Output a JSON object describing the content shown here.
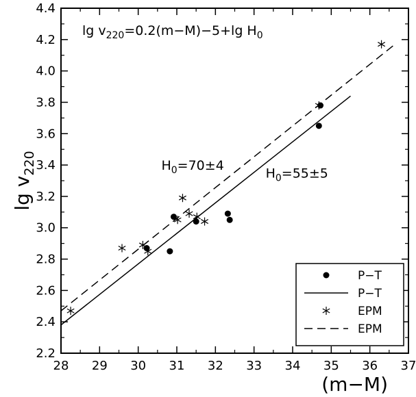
{
  "chart_data": {
    "type": "scatter",
    "title": "",
    "xlabel": "(m−M)",
    "ylabel": {
      "main": "lg v",
      "sub": "220"
    },
    "xlim": [
      28,
      37
    ],
    "ylim": [
      2.2,
      4.4
    ],
    "x_ticks": [
      28,
      29,
      30,
      31,
      32,
      33,
      34,
      35,
      36,
      37
    ],
    "y_ticks": [
      2.2,
      2.4,
      2.6,
      2.8,
      3.0,
      3.2,
      3.4,
      3.6,
      3.8,
      4.0,
      4.2,
      4.4
    ],
    "y_tick_labels": [
      "2.2",
      "2.4",
      "2.6",
      "2.8",
      "3.0",
      "3.2",
      "3.4",
      "3.6",
      "3.8",
      "4.0",
      "4.2",
      "4.4"
    ],
    "grid": false,
    "legend_position": "bottom-right",
    "series": [
      {
        "name": "P−T",
        "kind": "points",
        "marker": "filled-circle",
        "points": [
          {
            "x": 30.22,
            "y": 2.87
          },
          {
            "x": 30.82,
            "y": 2.85
          },
          {
            "x": 30.92,
            "y": 3.07
          },
          {
            "x": 31.5,
            "y": 3.04
          },
          {
            "x": 32.32,
            "y": 3.09
          },
          {
            "x": 32.37,
            "y": 3.05
          },
          {
            "x": 34.68,
            "y": 3.65
          },
          {
            "x": 34.72,
            "y": 3.78
          }
        ]
      },
      {
        "name": "P−T",
        "kind": "line",
        "dash": "solid",
        "points": [
          {
            "x": 28.0,
            "y": 2.38
          },
          {
            "x": 35.5,
            "y": 3.84
          }
        ]
      },
      {
        "name": "EPM",
        "kind": "points",
        "marker": "asterisk",
        "points": [
          {
            "x": 28.25,
            "y": 2.47
          },
          {
            "x": 29.58,
            "y": 2.87
          },
          {
            "x": 30.12,
            "y": 2.89
          },
          {
            "x": 30.25,
            "y": 2.85
          },
          {
            "x": 31.02,
            "y": 3.05
          },
          {
            "x": 31.15,
            "y": 3.19
          },
          {
            "x": 31.32,
            "y": 3.09
          },
          {
            "x": 31.52,
            "y": 3.07
          },
          {
            "x": 31.72,
            "y": 3.04
          },
          {
            "x": 34.68,
            "y": 3.78
          },
          {
            "x": 36.3,
            "y": 4.17
          }
        ]
      },
      {
        "name": "EPM",
        "kind": "line",
        "dash": "dashed",
        "points": [
          {
            "x": 28.0,
            "y": 2.47
          },
          {
            "x": 36.6,
            "y": 4.16
          }
        ]
      }
    ],
    "annotations": [
      {
        "id": "formula",
        "x": 28.55,
        "y": 4.23,
        "parts": [
          {
            "text": "lg v"
          },
          {
            "text": "220",
            "sub": true
          },
          {
            "text": "=0.2(m−M)−5+lg H"
          },
          {
            "text": "0",
            "sub": true
          }
        ]
      },
      {
        "id": "h0-epm",
        "x": 30.6,
        "y": 3.37,
        "parts": [
          {
            "text": "H"
          },
          {
            "text": "0",
            "sub": true
          },
          {
            "text": "=70±4"
          }
        ]
      },
      {
        "id": "h0-pt",
        "x": 33.3,
        "y": 3.32,
        "parts": [
          {
            "text": "H"
          },
          {
            "text": "0",
            "sub": true
          },
          {
            "text": "=55±5"
          }
        ]
      }
    ]
  }
}
